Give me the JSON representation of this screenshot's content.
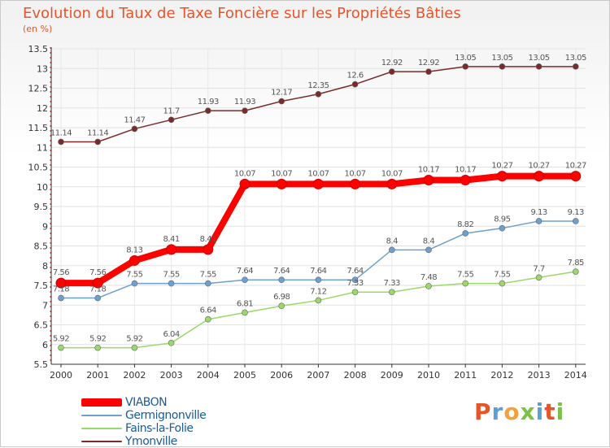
{
  "header": {
    "title": "Evolution du Taux de Taxe Foncière sur les Propriétés Bâties",
    "unit": "(en %)"
  },
  "logo": {
    "letters": [
      "P",
      "r",
      "o",
      "x",
      "i",
      "t",
      "i"
    ],
    "colors": [
      "#e8542a",
      "#5aa0d8",
      "#f2a23c",
      "#7cc242",
      "#5aa0d8",
      "#e8542a",
      "#7cc242"
    ]
  },
  "chart_data": {
    "type": "line",
    "x": [
      "2000",
      "2001",
      "2002",
      "2003",
      "2004",
      "2005",
      "2006",
      "2007",
      "2008",
      "2009",
      "2010",
      "2011",
      "2012",
      "2013",
      "2014"
    ],
    "ylim": [
      5.5,
      13.5
    ],
    "yticks": [
      "5.5",
      "6",
      "6.5",
      "7",
      "7.5",
      "8",
      "8.5",
      "9",
      "9.5",
      "10",
      "10.5",
      "11",
      "11.5",
      "12",
      "12.5",
      "13",
      "13.5"
    ],
    "legend_position": "bottom-left",
    "series": [
      {
        "name": "VIABON",
        "color": "#ff0000",
        "values": [
          7.56,
          7.56,
          8.13,
          8.41,
          8.41,
          10.07,
          10.07,
          10.07,
          10.07,
          10.07,
          10.17,
          10.17,
          10.27,
          10.27,
          10.27
        ],
        "labels": [
          "7.56",
          "7.56",
          "8.13",
          "8.41",
          "8.41",
          "10.07",
          "10.07",
          "10.07",
          "10.07",
          "10.07",
          "10.17",
          "10.17",
          "10.27",
          "10.27",
          "10.27"
        ]
      },
      {
        "name": "Germignonville",
        "color": "#6ca0cf",
        "values": [
          7.18,
          7.18,
          7.55,
          7.55,
          7.55,
          7.64,
          7.64,
          7.64,
          7.64,
          8.4,
          8.4,
          8.82,
          8.95,
          9.13,
          9.13
        ],
        "labels": [
          "7.18",
          "7.18",
          "7.55",
          "7.55",
          "7.55",
          "7.64",
          "7.64",
          "7.64",
          "7.64",
          "8.4",
          "8.4",
          "8.82",
          "8.95",
          "9.13",
          "9.13"
        ]
      },
      {
        "name": "Fains-la-Folie",
        "color": "#9ad86a",
        "values": [
          5.92,
          5.92,
          5.92,
          6.04,
          6.64,
          6.81,
          6.98,
          7.12,
          7.33,
          7.33,
          7.48,
          7.55,
          7.55,
          7.7,
          7.85
        ],
        "labels": [
          "5.92",
          "5.92",
          "5.92",
          "6.04",
          "6.64",
          "6.81",
          "6.98",
          "7.12",
          "7.33",
          "7.33",
          "7.48",
          "7.55",
          "7.55",
          "7.7",
          "7.85"
        ]
      },
      {
        "name": "Ymonville",
        "color": "#7a2a2a",
        "values": [
          11.14,
          11.14,
          11.47,
          11.7,
          11.93,
          11.93,
          12.17,
          12.35,
          12.6,
          12.92,
          12.92,
          13.05,
          13.05,
          13.05,
          13.05
        ],
        "labels": [
          "11.14",
          "11.14",
          "11.47",
          "11.7",
          "11.93",
          "11.93",
          "12.17",
          "12.35",
          "12.6",
          "12.92",
          "12.92",
          "13.05",
          "13.05",
          "13.05",
          "13.05"
        ]
      }
    ]
  }
}
